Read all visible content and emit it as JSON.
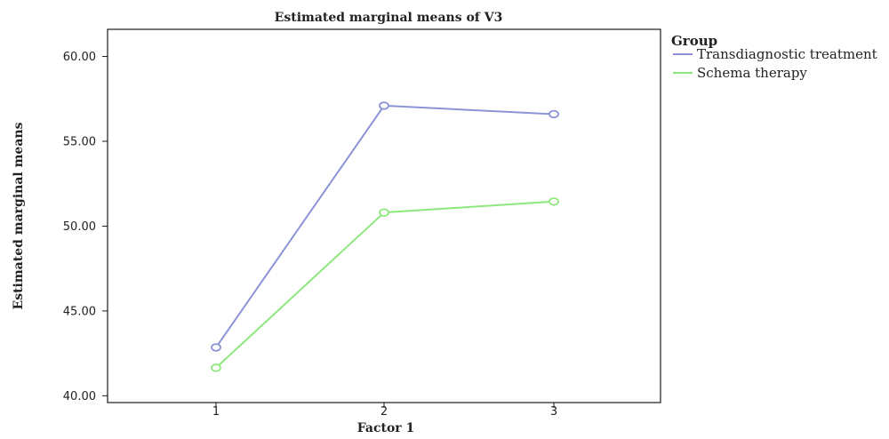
{
  "chart_data": {
    "type": "line",
    "title": "Estimated marginal means of V3",
    "xlabel": "Factor 1",
    "ylabel": "Estimated marginal means",
    "categories": [
      "1",
      "2",
      "3"
    ],
    "y_ticks": [
      "40.00",
      "45.00",
      "50.00",
      "55.00",
      "60.00"
    ],
    "ylim": [
      39.6,
      61.6
    ],
    "grid": false,
    "legend": {
      "title": "Group",
      "placement": "right"
    },
    "series": [
      {
        "name": "Transdiagnostic treatment",
        "values": [
          42.85,
          57.1,
          56.6
        ],
        "color": "#8c93d6"
      },
      {
        "name": "Schema therapy",
        "values": [
          41.65,
          50.8,
          51.45
        ],
        "color": "#8ee87f"
      }
    ]
  }
}
